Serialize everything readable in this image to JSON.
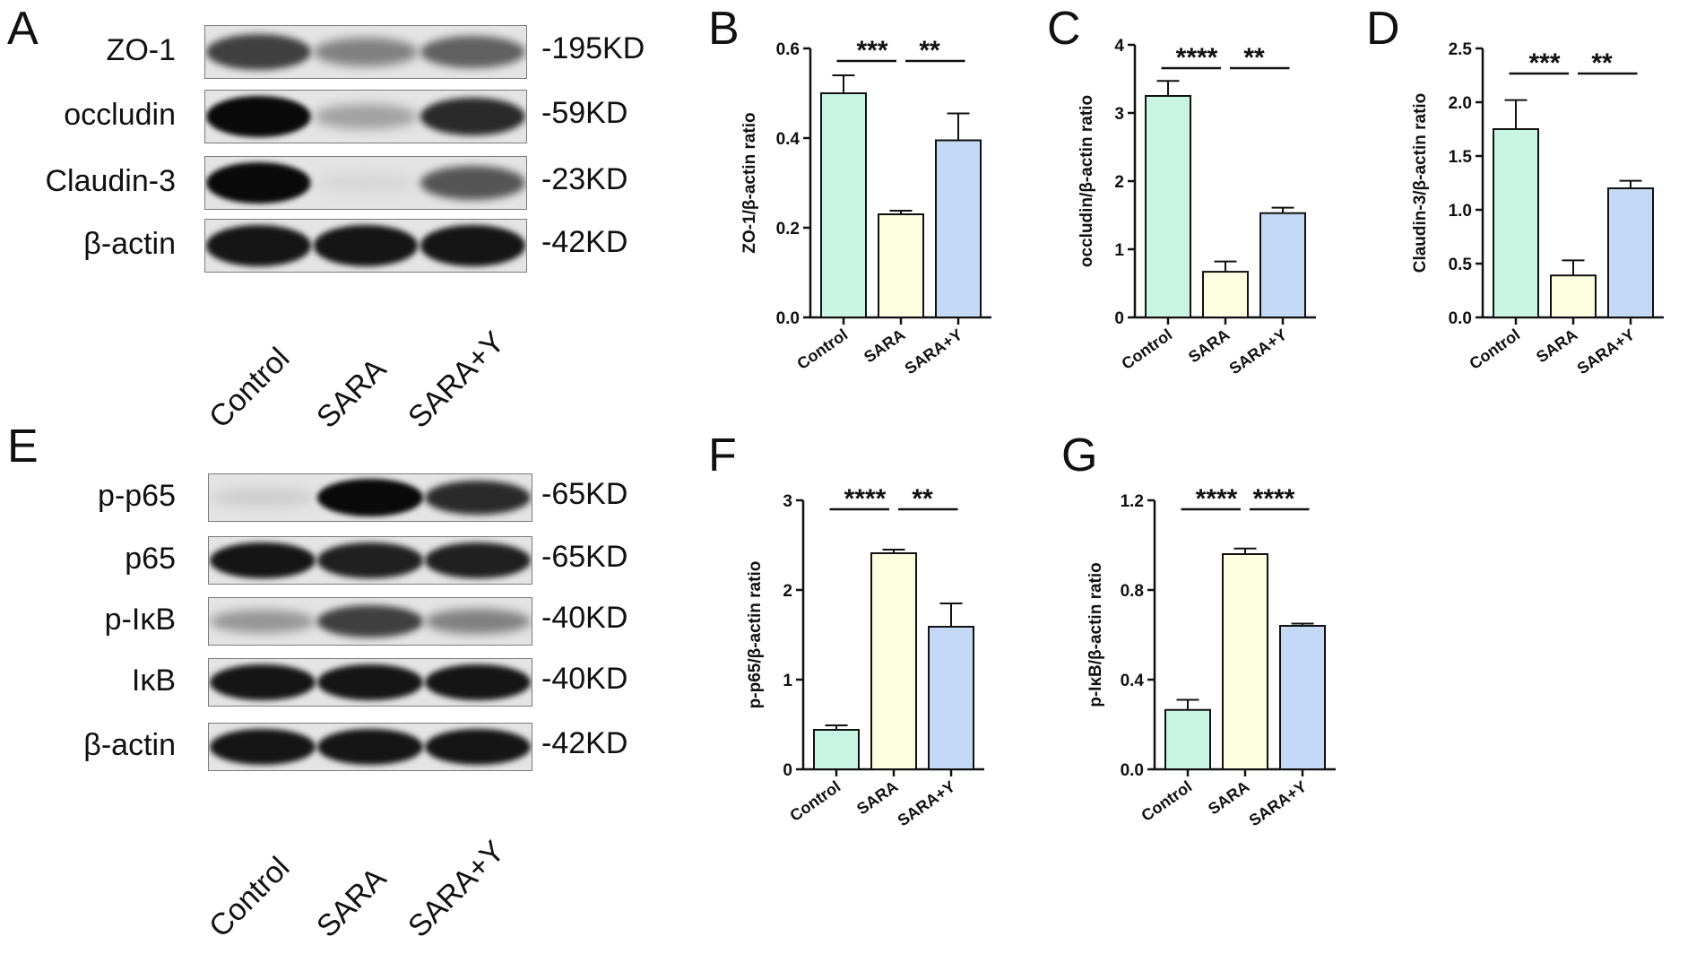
{
  "panels": {
    "A": "A",
    "B": "B",
    "C": "C",
    "D": "D",
    "E": "E",
    "F": "F",
    "G": "G"
  },
  "colors": {
    "control": "#c9f5e3",
    "sara": "#fdfde0",
    "sara_y": "#c4d9f5",
    "axis": "#111111"
  },
  "blot_A": {
    "lanes": [
      "Control",
      "SARA",
      "SARA+Y"
    ],
    "rows": [
      {
        "protein": "ZO-1",
        "kd": "-195KD",
        "intensity": [
          0.75,
          0.45,
          0.6
        ]
      },
      {
        "protein": "occludin",
        "kd": "-59KD",
        "intensity": [
          1.0,
          0.3,
          0.85
        ]
      },
      {
        "protein": "Claudin-3",
        "kd": "-23KD",
        "intensity": [
          1.0,
          0.05,
          0.65
        ]
      },
      {
        "protein": "β-actin",
        "kd": "-42KD",
        "intensity": [
          0.95,
          0.95,
          0.95
        ]
      }
    ]
  },
  "blot_E": {
    "lanes": [
      "Control",
      "SARA",
      "SARA+Y"
    ],
    "rows": [
      {
        "protein": "p-p65",
        "kd": "-65KD",
        "intensity": [
          0.1,
          1.0,
          0.85
        ]
      },
      {
        "protein": "p65",
        "kd": "-65KD",
        "intensity": [
          0.95,
          0.9,
          0.9
        ]
      },
      {
        "protein": "p-IκB",
        "kd": "-40KD",
        "intensity": [
          0.35,
          0.75,
          0.45
        ]
      },
      {
        "protein": "IκB",
        "kd": "-40KD",
        "intensity": [
          0.95,
          0.95,
          0.95
        ]
      },
      {
        "protein": "β-actin",
        "kd": "-42KD",
        "intensity": [
          0.95,
          0.95,
          0.95
        ]
      }
    ]
  },
  "chart_data": [
    {
      "id": "B",
      "type": "bar",
      "categories": [
        "Control",
        "SARA",
        "SARA+Y"
      ],
      "values": [
        0.5,
        0.23,
        0.395
      ],
      "errors": [
        0.04,
        0.008,
        0.06
      ],
      "ylabel": "ZO-1/β-actin  ratio",
      "ylim": [
        0,
        0.6
      ],
      "ticks": [
        0.0,
        0.2,
        0.4,
        0.6
      ],
      "tick_labels": [
        "0.0",
        "0.2",
        "0.4",
        "0.6"
      ],
      "significance": [
        {
          "from": 0,
          "to": 1,
          "label": "***"
        },
        {
          "from": 1,
          "to": 2,
          "label": "**"
        }
      ]
    },
    {
      "id": "C",
      "type": "bar",
      "categories": [
        "Control",
        "SARA",
        "SARA+Y"
      ],
      "values": [
        3.25,
        0.67,
        1.53
      ],
      "errors": [
        0.22,
        0.15,
        0.08
      ],
      "ylabel": "occludin/β-actin  ratio",
      "ylim": [
        0,
        4
      ],
      "ticks": [
        0,
        1,
        2,
        3,
        4
      ],
      "tick_labels": [
        "0",
        "1",
        "2",
        "3",
        "4"
      ],
      "significance": [
        {
          "from": 0,
          "to": 1,
          "label": "****"
        },
        {
          "from": 1,
          "to": 2,
          "label": "**"
        }
      ]
    },
    {
      "id": "D",
      "type": "bar",
      "categories": [
        "Control",
        "SARA",
        "SARA+Y"
      ],
      "values": [
        1.75,
        0.39,
        1.2
      ],
      "errors": [
        0.27,
        0.14,
        0.07
      ],
      "ylabel": "Claudin-3/β-actin  ratio",
      "ylim": [
        0,
        2.5
      ],
      "ticks": [
        0.0,
        0.5,
        1.0,
        1.5,
        2.0,
        2.5
      ],
      "tick_labels": [
        "0.0",
        "0.5",
        "1.0",
        "1.5",
        "2.0",
        "2.5"
      ],
      "significance": [
        {
          "from": 0,
          "to": 1,
          "label": "***"
        },
        {
          "from": 1,
          "to": 2,
          "label": "**"
        }
      ]
    },
    {
      "id": "F",
      "type": "bar",
      "categories": [
        "Control",
        "SARA",
        "SARA+Y"
      ],
      "values": [
        0.44,
        2.41,
        1.59
      ],
      "errors": [
        0.05,
        0.04,
        0.26
      ],
      "ylabel": "p-p65/β-actin  ratio",
      "ylim": [
        0,
        3
      ],
      "ticks": [
        0,
        1,
        2,
        3
      ],
      "tick_labels": [
        "0",
        "1",
        "2",
        "3"
      ],
      "significance": [
        {
          "from": 0,
          "to": 1,
          "label": "****"
        },
        {
          "from": 1,
          "to": 2,
          "label": "**"
        }
      ]
    },
    {
      "id": "G",
      "type": "bar",
      "categories": [
        "Control",
        "SARA",
        "SARA+Y"
      ],
      "values": [
        0.265,
        0.96,
        0.64
      ],
      "errors": [
        0.045,
        0.025,
        0.01
      ],
      "ylabel": "p-IκB/β-actin  ratio",
      "ylim": [
        0,
        1.2
      ],
      "ticks": [
        0.0,
        0.4,
        0.8,
        1.2
      ],
      "tick_labels": [
        "0.0",
        "0.4",
        "0.8",
        "1.2"
      ],
      "significance": [
        {
          "from": 0,
          "to": 1,
          "label": "****"
        },
        {
          "from": 1,
          "to": 2,
          "label": "****"
        }
      ]
    }
  ]
}
